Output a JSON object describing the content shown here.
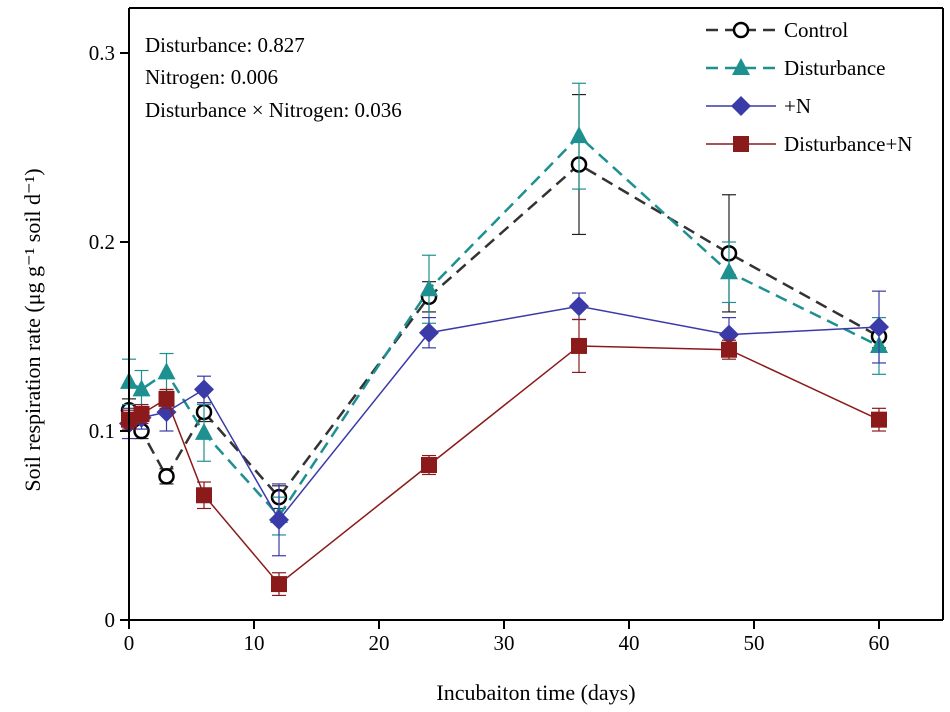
{
  "chart_data": {
    "type": "line",
    "xlabel": "Incubaiton time (days)",
    "ylabel": "Soil respiration rate (μg g⁻¹ soil d⁻¹)",
    "xlim": [
      0,
      65
    ],
    "ylim": [
      0,
      0.32
    ],
    "xticks": [
      0,
      10,
      20,
      30,
      40,
      50,
      60
    ],
    "yticks": [
      0,
      0.1,
      0.2,
      0.3
    ],
    "ytick_labels": [
      "0",
      "0.1",
      "0.2",
      "0.3"
    ],
    "grid": false,
    "legend_position": "top-right",
    "annotations": [
      "Disturbance: 0.827",
      "Nitrogen: 0.006",
      "Disturbance × Nitrogen: 0.036"
    ],
    "x": [
      0,
      1,
      3,
      6,
      12,
      24,
      36,
      48,
      60
    ],
    "series": [
      {
        "name": "Control",
        "color": "#333333",
        "dash": true,
        "marker": "open-circle",
        "values": [
          0.111,
          0.1,
          0.076,
          0.11,
          0.065,
          0.171,
          0.241,
          0.194,
          0.15
        ],
        "errors": [
          0.006,
          0.004,
          0.004,
          0.005,
          0.006,
          0.008,
          0.037,
          0.031,
          0.006
        ]
      },
      {
        "name": "Disturbance",
        "color": "#1e9090",
        "dash": true,
        "marker": "triangle",
        "values": [
          0.126,
          0.122,
          0.131,
          0.099,
          0.055,
          0.175,
          0.256,
          0.184,
          0.145
        ],
        "errors": [
          0.012,
          0.01,
          0.01,
          0.015,
          0.01,
          0.018,
          0.028,
          0.016,
          0.015
        ]
      },
      {
        "name": "+N",
        "color": "#3a3aa8",
        "dash": false,
        "marker": "diamond",
        "values": [
          0.104,
          0.107,
          0.11,
          0.122,
          0.053,
          0.152,
          0.166,
          0.151,
          0.155
        ],
        "errors": [
          0.008,
          0.006,
          0.01,
          0.007,
          0.019,
          0.008,
          0.007,
          0.009,
          0.019
        ]
      },
      {
        "name": "Disturbance+N",
        "color": "#8b1a1a",
        "dash": false,
        "marker": "square",
        "values": [
          0.106,
          0.109,
          0.117,
          0.066,
          0.019,
          0.082,
          0.145,
          0.143,
          0.106
        ],
        "errors": [
          0.005,
          0.005,
          0.005,
          0.007,
          0.006,
          0.005,
          0.014,
          0.005,
          0.006
        ]
      }
    ]
  }
}
